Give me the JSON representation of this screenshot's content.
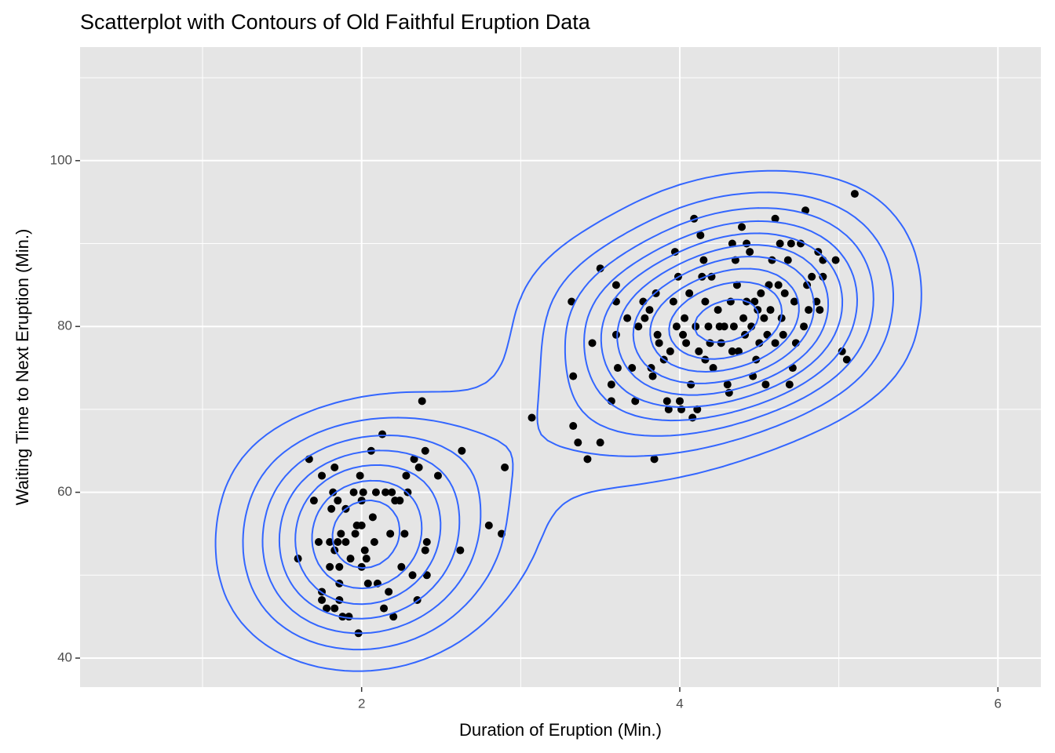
{
  "chart_data": {
    "type": "scatter",
    "title": "Scatterplot with Contours of Old Faithful Eruption Data",
    "x_label": "Duration of Eruption (Min.)",
    "y_label": "Waiting Time to Next Eruption (Min.)",
    "color": "#000000",
    "contour_color": "#3366ff",
    "panel_color": "#e5e5e5",
    "grid": true,
    "xlim": [
      0.23,
      6.27
    ],
    "ylim": [
      36.5,
      113.7
    ],
    "xticks": [
      2,
      4,
      6
    ],
    "yticks": [
      40,
      60,
      80,
      100
    ],
    "x_minor_grid": [
      1,
      3,
      5
    ],
    "y_minor_grid": [
      50,
      70,
      90,
      110
    ],
    "x": [
      1.6,
      1.67,
      1.7,
      1.73,
      1.75,
      1.75,
      1.75,
      1.78,
      1.8,
      1.8,
      1.81,
      1.82,
      1.83,
      1.83,
      1.83,
      1.85,
      1.85,
      1.86,
      1.86,
      1.86,
      1.87,
      1.88,
      1.9,
      1.9,
      1.92,
      1.93,
      1.95,
      1.96,
      1.97,
      1.98,
      1.99,
      2.0,
      2.0,
      2.0,
      2.01,
      2.02,
      2.03,
      2.04,
      2.06,
      2.07,
      2.08,
      2.09,
      2.1,
      2.13,
      2.14,
      2.15,
      2.17,
      2.18,
      2.19,
      2.2,
      2.21,
      2.24,
      2.25,
      2.27,
      2.28,
      2.29,
      2.32,
      2.33,
      2.35,
      2.36,
      2.38,
      2.4,
      2.4,
      2.41,
      2.41,
      2.48,
      2.62,
      2.63,
      2.8,
      2.88,
      2.9,
      3.07,
      3.33,
      3.32,
      3.33,
      3.36,
      3.42,
      3.45,
      3.5,
      3.5,
      3.57,
      3.57,
      3.6,
      3.6,
      3.6,
      3.61,
      3.67,
      3.7,
      3.72,
      3.74,
      3.77,
      3.78,
      3.81,
      3.82,
      3.83,
      3.84,
      3.85,
      3.86,
      3.87,
      3.9,
      3.92,
      3.93,
      3.94,
      3.96,
      3.97,
      3.98,
      3.99,
      4.0,
      4.01,
      4.02,
      4.03,
      4.04,
      4.06,
      4.07,
      4.08,
      4.09,
      4.1,
      4.11,
      4.12,
      4.13,
      4.14,
      4.15,
      4.16,
      4.16,
      4.18,
      4.19,
      4.2,
      4.21,
      4.24,
      4.25,
      4.26,
      4.28,
      4.3,
      4.31,
      4.32,
      4.33,
      4.33,
      4.34,
      4.35,
      4.36,
      4.37,
      4.39,
      4.4,
      4.41,
      4.42,
      4.42,
      4.44,
      4.45,
      4.46,
      4.47,
      4.48,
      4.49,
      4.5,
      4.51,
      4.53,
      4.54,
      4.55,
      4.56,
      4.57,
      4.58,
      4.6,
      4.6,
      4.62,
      4.63,
      4.64,
      4.65,
      4.66,
      4.68,
      4.69,
      4.7,
      4.71,
      4.72,
      4.73,
      4.76,
      4.78,
      4.79,
      4.8,
      4.81,
      4.83,
      4.86,
      4.87,
      4.88,
      4.9,
      4.9,
      4.98,
      5.02,
      5.05,
      5.1
    ],
    "values": [
      52,
      64,
      59,
      54,
      62,
      48,
      47,
      46,
      54,
      51,
      58,
      60,
      63,
      53,
      46,
      54,
      59,
      51,
      49,
      47,
      55,
      45,
      58,
      54,
      45,
      52,
      60,
      55,
      56,
      43,
      62,
      59,
      51,
      56,
      60,
      53,
      52,
      49,
      65,
      57,
      54,
      60,
      49,
      67,
      46,
      60,
      48,
      55,
      60,
      45,
      59,
      59,
      51,
      55,
      62,
      60,
      50,
      64,
      47,
      63,
      71,
      65,
      53,
      54,
      50,
      62,
      53,
      65,
      56,
      55,
      63,
      69,
      74,
      83,
      68,
      66,
      64,
      78,
      66,
      87,
      73,
      71,
      85,
      83,
      79,
      75,
      81,
      75,
      71,
      80,
      83,
      81,
      82,
      75,
      74,
      64,
      84,
      79,
      78,
      76,
      71,
      70,
      77,
      83,
      89,
      80,
      86,
      71,
      70,
      79,
      81,
      78,
      84,
      73,
      69,
      93,
      80,
      70,
      77,
      91,
      86,
      88,
      83,
      76,
      80,
      78,
      86,
      75,
      82,
      80,
      78,
      80,
      73,
      72,
      83,
      90,
      77,
      80,
      88,
      85,
      77,
      92,
      81,
      79,
      90,
      83,
      89,
      80,
      74,
      83,
      76,
      82,
      78,
      84,
      81,
      73,
      79,
      85,
      82,
      88,
      93,
      78,
      85,
      90,
      81,
      79,
      84,
      88,
      73,
      90,
      75,
      83,
      78,
      90,
      80,
      94,
      85,
      82,
      86,
      83,
      89,
      82,
      88,
      86,
      88,
      77,
      76,
      96
    ]
  }
}
